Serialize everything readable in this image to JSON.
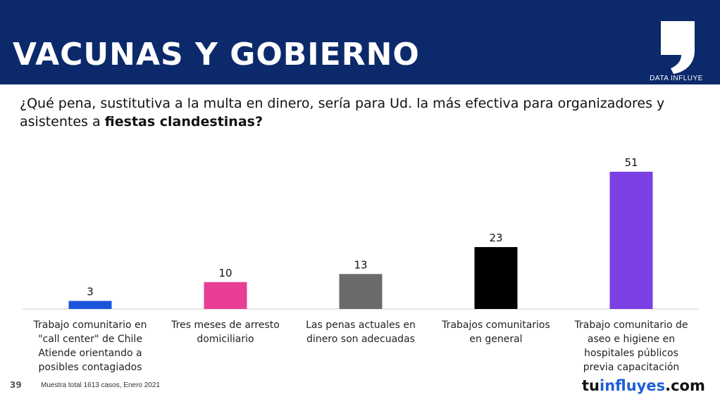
{
  "header": {
    "title": "VACUNAS Y GOBIERNO",
    "brand_label": "DATA INFLUYE",
    "background": "#0c2a6b"
  },
  "question": {
    "text_before": "¿Qué pena, sustitutiva a la multa en dinero, sería para Ud. la más efectiva para organizadores y asistentes a ",
    "text_bold": "fiestas clandestinas?"
  },
  "chart_data": {
    "type": "bar",
    "categories": [
      [
        "Trabajo comunitario en",
        "\"call center\" de Chile",
        "Atiende orientando a",
        "posibles contagiados"
      ],
      [
        "Tres meses de arresto",
        "domiciliario"
      ],
      [
        "Las penas actuales en",
        "dinero son adecuadas"
      ],
      [
        "Trabajos comunitarios",
        "en general"
      ],
      [
        "Trabajo comunitario de",
        "aseo e higiene en",
        "hospitales públicos",
        "previa capacitación"
      ]
    ],
    "values": [
      3,
      10,
      13,
      23,
      51
    ],
    "colors": [
      "#1a56db",
      "#e83e95",
      "#6b6b6b",
      "#000000",
      "#7b3fe4"
    ],
    "data_labels": true,
    "title": "",
    "xlabel": "",
    "ylabel": "",
    "ylim": [
      0,
      51
    ],
    "grid": false
  },
  "footer": {
    "page_number": "39",
    "note": "Muestra total 1613 casos,  Enero 2021",
    "url_part1": "tu",
    "url_part2": "influyes",
    "url_part3": ".com"
  }
}
